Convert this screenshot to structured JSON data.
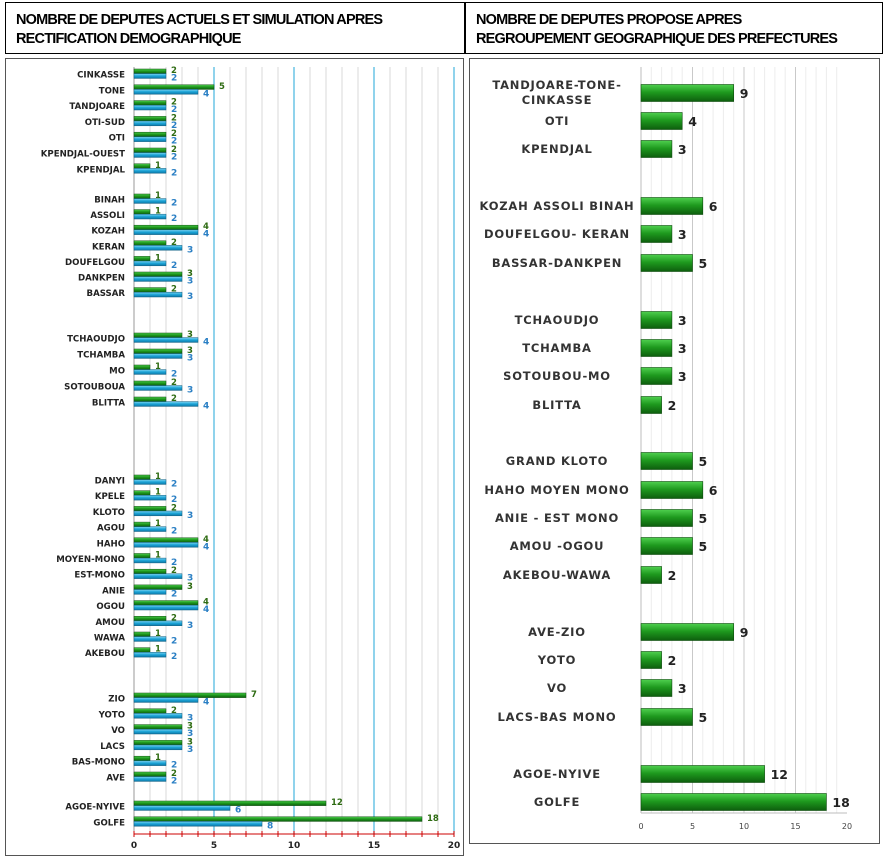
{
  "header": {
    "left_line1": "NOMBRE DE DEPUTES ACTUELS ET SIMULATION APRES",
    "left_line2": "RECTIFICATION DEMOGRAPHIQUE",
    "right_line1": "NOMBRE DE DEPUTES PROPOSE APRES",
    "right_line2": "REGROUPEMENT GEOGRAPHIQUE DES PREFECTURES"
  },
  "colors": {
    "green_bar": "#1e8a1e",
    "blue_bar": "#1aa3d6",
    "green_label": "#2e6b12",
    "blue_label": "#2a7fc4",
    "grid_major": "#45b6e0",
    "grid_minor": "#d8d8d8",
    "axis_zero": "#999999",
    "axis_bottom": "#cc0000"
  },
  "chart_data": [
    {
      "type": "bar",
      "orientation": "horizontal",
      "title": "NOMBRE DE DEPUTES ACTUELS ET SIMULATION APRES RECTIFICATION DEMOGRAPHIQUE",
      "xlim": [
        0,
        20
      ],
      "x_ticks": [
        "0",
        "5",
        "10",
        "15",
        "20"
      ],
      "grid": true,
      "groups": [
        [
          "CINKASSE",
          "TONE",
          "TANDJOARE",
          "OTI-SUD",
          "OTI",
          "KPENDJAL-OUEST",
          "KPENDJAL"
        ],
        [
          "BINAH",
          "ASSOLI",
          "KOZAH",
          "KERAN",
          "DOUFELGOU",
          "DANKPEN",
          "BASSAR"
        ],
        [
          "TCHAOUDJO",
          "TCHAMBA",
          "MO",
          "SOTOUBOUA",
          "BLITTA"
        ],
        [
          "DANYI",
          "KPELE",
          "KLOTO",
          "AGOU",
          "HAHO",
          "MOYEN-MONO",
          "EST-MONO",
          "ANIE",
          "OGOU",
          "AMOU",
          "WAWA",
          "AKEBOU"
        ],
        [
          "ZIO",
          "YOTO",
          "VO",
          "LACS",
          "BAS-MONO",
          "AVE"
        ],
        [
          "AGOE-NYIVE",
          "GOLFE"
        ]
      ],
      "categories": [
        "CINKASSE",
        "TONE",
        "TANDJOARE",
        "OTI-SUD",
        "OTI",
        "KPENDJAL-OUEST",
        "KPENDJAL",
        "BINAH",
        "ASSOLI",
        "KOZAH",
        "KERAN",
        "DOUFELGOU",
        "DANKPEN",
        "BASSAR",
        "TCHAOUDJO",
        "TCHAMBA",
        "MO",
        "SOTOUBOUA",
        "BLITTA",
        "DANYI",
        "KPELE",
        "KLOTO",
        "AGOU",
        "HAHO",
        "MOYEN-MONO",
        "EST-MONO",
        "ANIE",
        "OGOU",
        "AMOU",
        "WAWA",
        "AKEBOU",
        "ZIO",
        "YOTO",
        "VO",
        "LACS",
        "BAS-MONO",
        "AVE",
        "AGOE-NYIVE",
        "GOLFE"
      ],
      "series": [
        {
          "values": [
            2,
            5,
            2,
            2,
            2,
            2,
            1,
            1,
            1,
            4,
            2,
            1,
            3,
            2,
            3,
            3,
            1,
            2,
            2,
            1,
            1,
            2,
            1,
            4,
            1,
            2,
            3,
            4,
            2,
            1,
            1,
            7,
            2,
            3,
            3,
            1,
            2,
            12,
            18
          ]
        },
        {
          "values": [
            2,
            4,
            2,
            2,
            2,
            2,
            2,
            2,
            2,
            4,
            3,
            2,
            3,
            3,
            4,
            3,
            2,
            3,
            4,
            2,
            2,
            3,
            2,
            4,
            2,
            3,
            2,
            4,
            3,
            2,
            2,
            4,
            3,
            3,
            3,
            2,
            2,
            6,
            8
          ]
        }
      ]
    },
    {
      "type": "bar",
      "orientation": "horizontal",
      "title": "NOMBRE DE DEPUTES PROPOSE APRES REGROUPEMENT GEOGRAPHIQUE DES PREFECTURES",
      "xlim": [
        0,
        20
      ],
      "x_ticks": [
        "0",
        "5",
        "10",
        "15",
        "20"
      ],
      "grid": true,
      "groups": [
        [
          [
            "TANDJOARE-TONE-",
            "CINKASSE"
          ],
          [
            "OTI"
          ],
          [
            "KPENDJAL"
          ]
        ],
        [
          [
            "KOZAH ASSOLI BINAH"
          ],
          [
            "DOUFELGOU- KERAN"
          ],
          [
            "BASSAR-DANKPEN"
          ]
        ],
        [
          [
            "TCHAOUDJO"
          ],
          [
            "TCHAMBA"
          ],
          [
            "SOTOUBOU-MO"
          ],
          [
            "BLITTA"
          ]
        ],
        [
          [
            "GRAND KLOTO"
          ],
          [
            "HAHO MOYEN MONO"
          ],
          [
            "ANIE - EST MONO"
          ],
          [
            "AMOU -OGOU"
          ],
          [
            "AKEBOU-WAWA"
          ]
        ],
        [
          [
            "AVE-ZIO"
          ],
          [
            "YOTO"
          ],
          [
            "VO"
          ],
          [
            "LACS-BAS MONO"
          ]
        ],
        [
          [
            "AGOE-NYIVE"
          ],
          [
            "GOLFE"
          ]
        ]
      ],
      "categories": [
        "TANDJOARE-TONE-CINKASSE",
        "OTI",
        "KPENDJAL",
        "KOZAH ASSOLI BINAH",
        "DOUFELGOU- KERAN",
        "BASSAR-DANKPEN",
        "TCHAOUDJO",
        "TCHAMBA",
        "SOTOUBOU-MO",
        "BLITTA",
        "GRAND KLOTO",
        "HAHO MOYEN MONO",
        "ANIE - EST MONO",
        "AMOU -OGOU",
        "AKEBOU-WAWA",
        "AVE-ZIO",
        "YOTO",
        "VO",
        "LACS-BAS MONO",
        "AGOE-NYIVE",
        "GOLFE"
      ],
      "values": [
        9,
        4,
        3,
        6,
        3,
        5,
        3,
        3,
        3,
        2,
        5,
        6,
        5,
        5,
        2,
        9,
        2,
        3,
        5,
        12,
        18
      ]
    }
  ]
}
